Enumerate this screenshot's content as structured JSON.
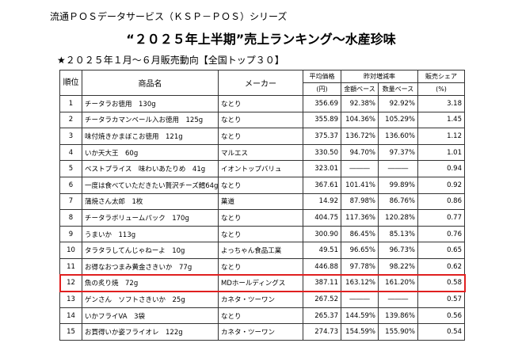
{
  "header": {
    "series": "流通ＰＯＳデータサービス（ＫＳＰ－ＰＯＳ）シリーズ",
    "title": "“２０２５年上半期”売上ランキング～水産珍味",
    "subtitle": "★２０２５年１月～６月販売動向【全国トップ３０】"
  },
  "table": {
    "columns": {
      "rank": "順位",
      "product": "商品名",
      "maker": "メーカー",
      "price": "平均価格",
      "price_unit": "(円)",
      "growth": "昨対増減率",
      "amount": "金額ベース",
      "quantity": "数量ベース",
      "share": "販売シェア",
      "share_unit": "(%)"
    },
    "rows": [
      [
        "1",
        "チータラお徳用　130g",
        "なとり",
        "356.69",
        "92.38%",
        "92.92%",
        "3.18"
      ],
      [
        "2",
        "チータラカマンベール入お徳用　125g",
        "なとり",
        "355.89",
        "104.36%",
        "105.29%",
        "1.45"
      ],
      [
        "3",
        "味付焼きかまぼこお徳用　121g",
        "なとり",
        "375.37",
        "136.72%",
        "136.60%",
        "1.12"
      ],
      [
        "4",
        "いか天大王　60g",
        "マルエス",
        "330.50",
        "94.70%",
        "97.37%",
        "1.01"
      ],
      [
        "5",
        "ベストプライス　味わいあたりめ　41g",
        "イオントップバリュ",
        "323.01",
        "―――",
        "―――",
        "0.94"
      ],
      [
        "6",
        "一度は食べていただきたい贅沢チーズ鱈64g",
        "なとり",
        "367.61",
        "101.41%",
        "99.89%",
        "0.92"
      ],
      [
        "7",
        "蒲焼さん太郎　1枚",
        "菓道",
        "14.92",
        "87.98%",
        "86.76%",
        "0.86"
      ],
      [
        "8",
        "チータラボリュームパック　170g",
        "なとり",
        "404.75",
        "117.36%",
        "120.28%",
        "0.77"
      ],
      [
        "9",
        "うまいか　113g",
        "なとり",
        "300.90",
        "86.45%",
        "85.13%",
        "0.76"
      ],
      [
        "10",
        "タラタラしてんじゃねーよ　10g",
        "よっちゃん食品工業",
        "49.51",
        "96.65%",
        "96.73%",
        "0.65"
      ],
      [
        "11",
        "お得なおつまみ黄金さきいか　77g",
        "なとり",
        "446.88",
        "97.78%",
        "98.22%",
        "0.62"
      ],
      [
        "12",
        "魚の炙り焼　72g",
        "MDホールディングス",
        "387.11",
        "163.12%",
        "161.20%",
        "0.58"
      ],
      [
        "13",
        "ゲンさん　ソフトさきいか　25g",
        "カネタ・ツーワン",
        "267.52",
        "―――",
        "―――",
        "0.57"
      ],
      [
        "14",
        "いかフライVA　3袋",
        "なとり",
        "265.37",
        "144.59%",
        "139.86%",
        "0.56"
      ],
      [
        "15",
        "お買得いか姿フライオレ　122g",
        "カネタ・ツーワン",
        "274.73",
        "154.59%",
        "155.90%",
        "0.54"
      ]
    ]
  }
}
